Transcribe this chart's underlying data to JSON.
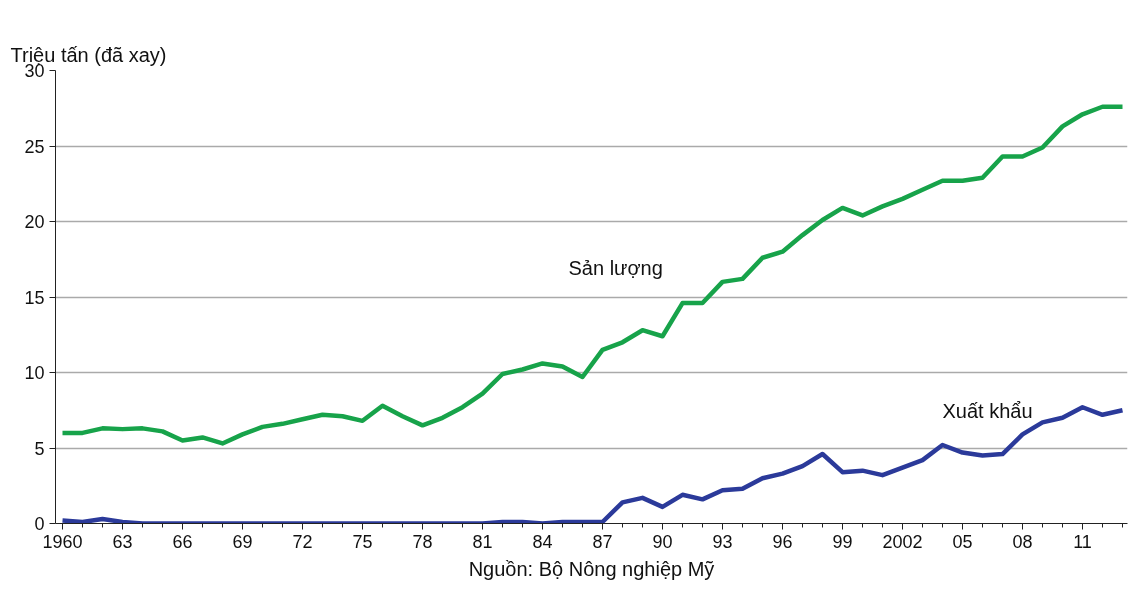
{
  "chart_data": {
    "type": "line",
    "ylabel": "Triệu tấn (đã xay)",
    "annotations": [
      "Nguồn: Bộ Nông nghiệp Mỹ"
    ],
    "x": [
      1960,
      1961,
      1962,
      1963,
      1964,
      1965,
      1966,
      1967,
      1968,
      1969,
      1970,
      1971,
      1972,
      1973,
      1974,
      1975,
      1976,
      1977,
      1978,
      1979,
      1980,
      1981,
      1982,
      1983,
      1984,
      1985,
      1986,
      1987,
      1988,
      1989,
      1990,
      1991,
      1992,
      1993,
      1994,
      1995,
      1996,
      1997,
      1998,
      1999,
      2000,
      2001,
      2002,
      2003,
      2004,
      2005,
      2006,
      2007,
      2008,
      2009,
      2010,
      2011,
      2012,
      2013
    ],
    "series": [
      {
        "name": "Sản lượng",
        "color": "#17a34a",
        "values": [
          6.0,
          6.0,
          6.3,
          6.25,
          6.3,
          6.1,
          5.5,
          5.7,
          5.3,
          5.9,
          6.4,
          6.6,
          6.9,
          7.2,
          7.1,
          6.8,
          7.8,
          7.1,
          6.5,
          7.0,
          7.7,
          8.6,
          9.9,
          10.2,
          10.6,
          10.4,
          9.7,
          11.5,
          12.0,
          12.8,
          12.4,
          14.6,
          14.6,
          16.0,
          16.2,
          17.6,
          18.0,
          19.1,
          20.1,
          20.9,
          20.4,
          21.0,
          21.5,
          22.1,
          22.7,
          22.7,
          22.9,
          24.3,
          24.3,
          24.9,
          26.3,
          27.1,
          27.6,
          27.6
        ]
      },
      {
        "name": "Xuất khẩu",
        "color": "#2b3a9a",
        "values": [
          0.2,
          0.1,
          0.3,
          0.1,
          0.0,
          0.0,
          0.0,
          0.0,
          0.0,
          0.0,
          0.0,
          0.0,
          0.0,
          0.0,
          0.0,
          0.0,
          0.0,
          0.0,
          0.0,
          0.0,
          0.0,
          0.0,
          0.1,
          0.1,
          0.0,
          0.1,
          0.1,
          0.1,
          1.4,
          1.7,
          1.1,
          1.9,
          1.6,
          2.2,
          2.3,
          3.0,
          3.3,
          3.8,
          4.6,
          3.4,
          3.5,
          3.2,
          3.7,
          4.2,
          5.2,
          4.7,
          4.5,
          4.6,
          5.9,
          6.7,
          7.0,
          7.7,
          7.2,
          7.5
        ]
      }
    ],
    "xlim": [
      1959.65,
      2013.25
    ],
    "xticks": [
      1960,
      {
        "value": 1963,
        "label": "63"
      },
      {
        "value": 1966,
        "label": "66"
      },
      {
        "value": 1969,
        "label": "69"
      },
      {
        "value": 1972,
        "label": "72"
      },
      {
        "value": 1975,
        "label": "75"
      },
      {
        "value": 1978,
        "label": "78"
      },
      {
        "value": 1981,
        "label": "81"
      },
      {
        "value": 1984,
        "label": "84"
      },
      {
        "value": 1987,
        "label": "87"
      },
      {
        "value": 1990,
        "label": "90"
      },
      {
        "value": 1993,
        "label": "93"
      },
      {
        "value": 1996,
        "label": "96"
      },
      {
        "value": 1999,
        "label": "99"
      },
      2002,
      {
        "value": 2005,
        "label": "05"
      },
      {
        "value": 2008,
        "label": "08"
      },
      {
        "value": 2011,
        "label": "11"
      }
    ],
    "ylim": [
      0,
      30
    ],
    "yticks": [
      0,
      5,
      10,
      15,
      20,
      25,
      30
    ],
    "grid": "y",
    "marker": "none",
    "line_style": "solid"
  }
}
